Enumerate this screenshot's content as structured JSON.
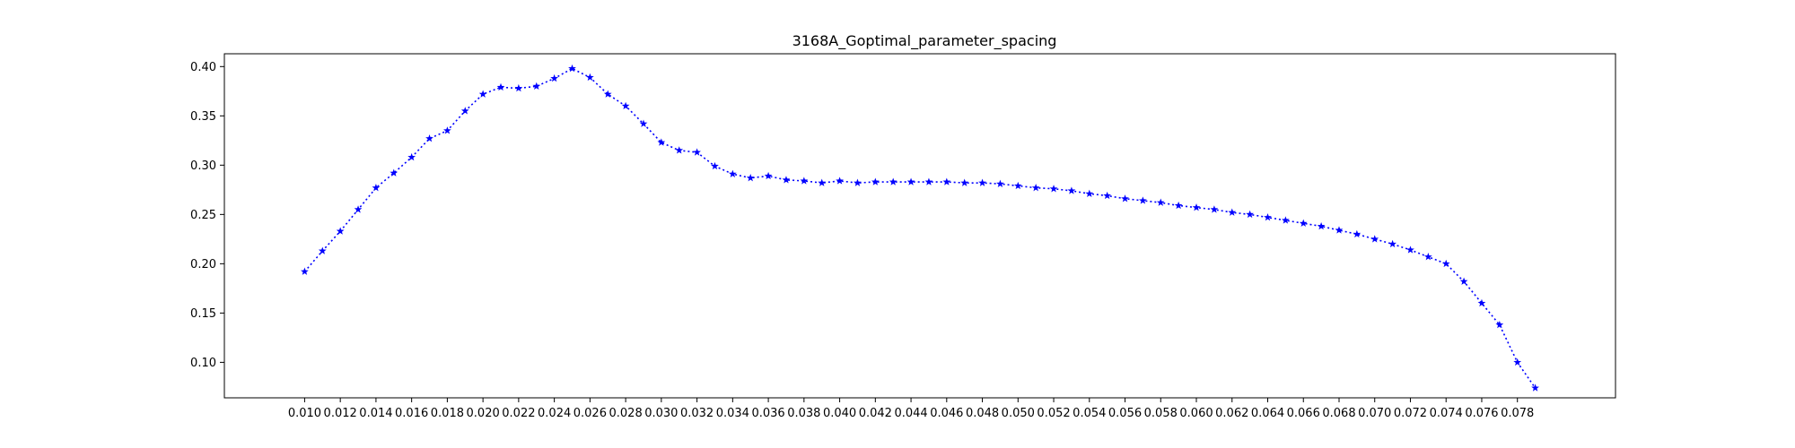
{
  "chart_data": {
    "type": "line",
    "title": "3168A_Goptimal_parameter_spacing",
    "xlabel": "",
    "ylabel": "",
    "xlim": [
      0.0055,
      0.0835
    ],
    "ylim": [
      0.064,
      0.413
    ],
    "x_ticks": [
      "0.010",
      "0.012",
      "0.014",
      "0.016",
      "0.018",
      "0.020",
      "0.022",
      "0.024",
      "0.026",
      "0.028",
      "0.030",
      "0.032",
      "0.034",
      "0.036",
      "0.038",
      "0.040",
      "0.042",
      "0.044",
      "0.046",
      "0.048",
      "0.050",
      "0.052",
      "0.054",
      "0.056",
      "0.058",
      "0.060",
      "0.062",
      "0.064",
      "0.066",
      "0.068",
      "0.070",
      "0.072",
      "0.074",
      "0.076",
      "0.078"
    ],
    "y_ticks": [
      "0.10",
      "0.15",
      "0.20",
      "0.25",
      "0.30",
      "0.35",
      "0.40"
    ],
    "grid": false,
    "series": [
      {
        "color": "#0000ff",
        "line_style": "dotted",
        "marker": "star",
        "x": [
          0.01,
          0.011,
          0.012,
          0.013,
          0.014,
          0.015,
          0.016,
          0.017,
          0.018,
          0.019,
          0.02,
          0.021,
          0.022,
          0.023,
          0.024,
          0.025,
          0.026,
          0.027,
          0.028,
          0.029,
          0.03,
          0.031,
          0.032,
          0.033,
          0.034,
          0.035,
          0.036,
          0.037,
          0.038,
          0.039,
          0.04,
          0.041,
          0.042,
          0.043,
          0.044,
          0.045,
          0.046,
          0.047,
          0.048,
          0.049,
          0.05,
          0.051,
          0.052,
          0.053,
          0.054,
          0.055,
          0.056,
          0.057,
          0.058,
          0.059,
          0.06,
          0.061,
          0.062,
          0.063,
          0.064,
          0.065,
          0.066,
          0.067,
          0.068,
          0.069,
          0.07,
          0.071,
          0.072,
          0.073,
          0.074,
          0.075,
          0.076,
          0.077,
          0.078,
          0.079
        ],
        "y": [
          0.192,
          0.213,
          0.233,
          0.255,
          0.277,
          0.292,
          0.308,
          0.327,
          0.335,
          0.355,
          0.372,
          0.379,
          0.378,
          0.38,
          0.388,
          0.398,
          0.389,
          0.372,
          0.36,
          0.342,
          0.323,
          0.315,
          0.313,
          0.299,
          0.291,
          0.287,
          0.289,
          0.285,
          0.284,
          0.282,
          0.284,
          0.282,
          0.283,
          0.283,
          0.283,
          0.283,
          0.283,
          0.282,
          0.282,
          0.281,
          0.279,
          0.277,
          0.276,
          0.274,
          0.271,
          0.269,
          0.266,
          0.264,
          0.262,
          0.259,
          0.257,
          0.255,
          0.252,
          0.25,
          0.247,
          0.244,
          0.241,
          0.238,
          0.234,
          0.23,
          0.225,
          0.22,
          0.214,
          0.207,
          0.2,
          0.182,
          0.16,
          0.138,
          0.1,
          0.074
        ]
      }
    ]
  }
}
